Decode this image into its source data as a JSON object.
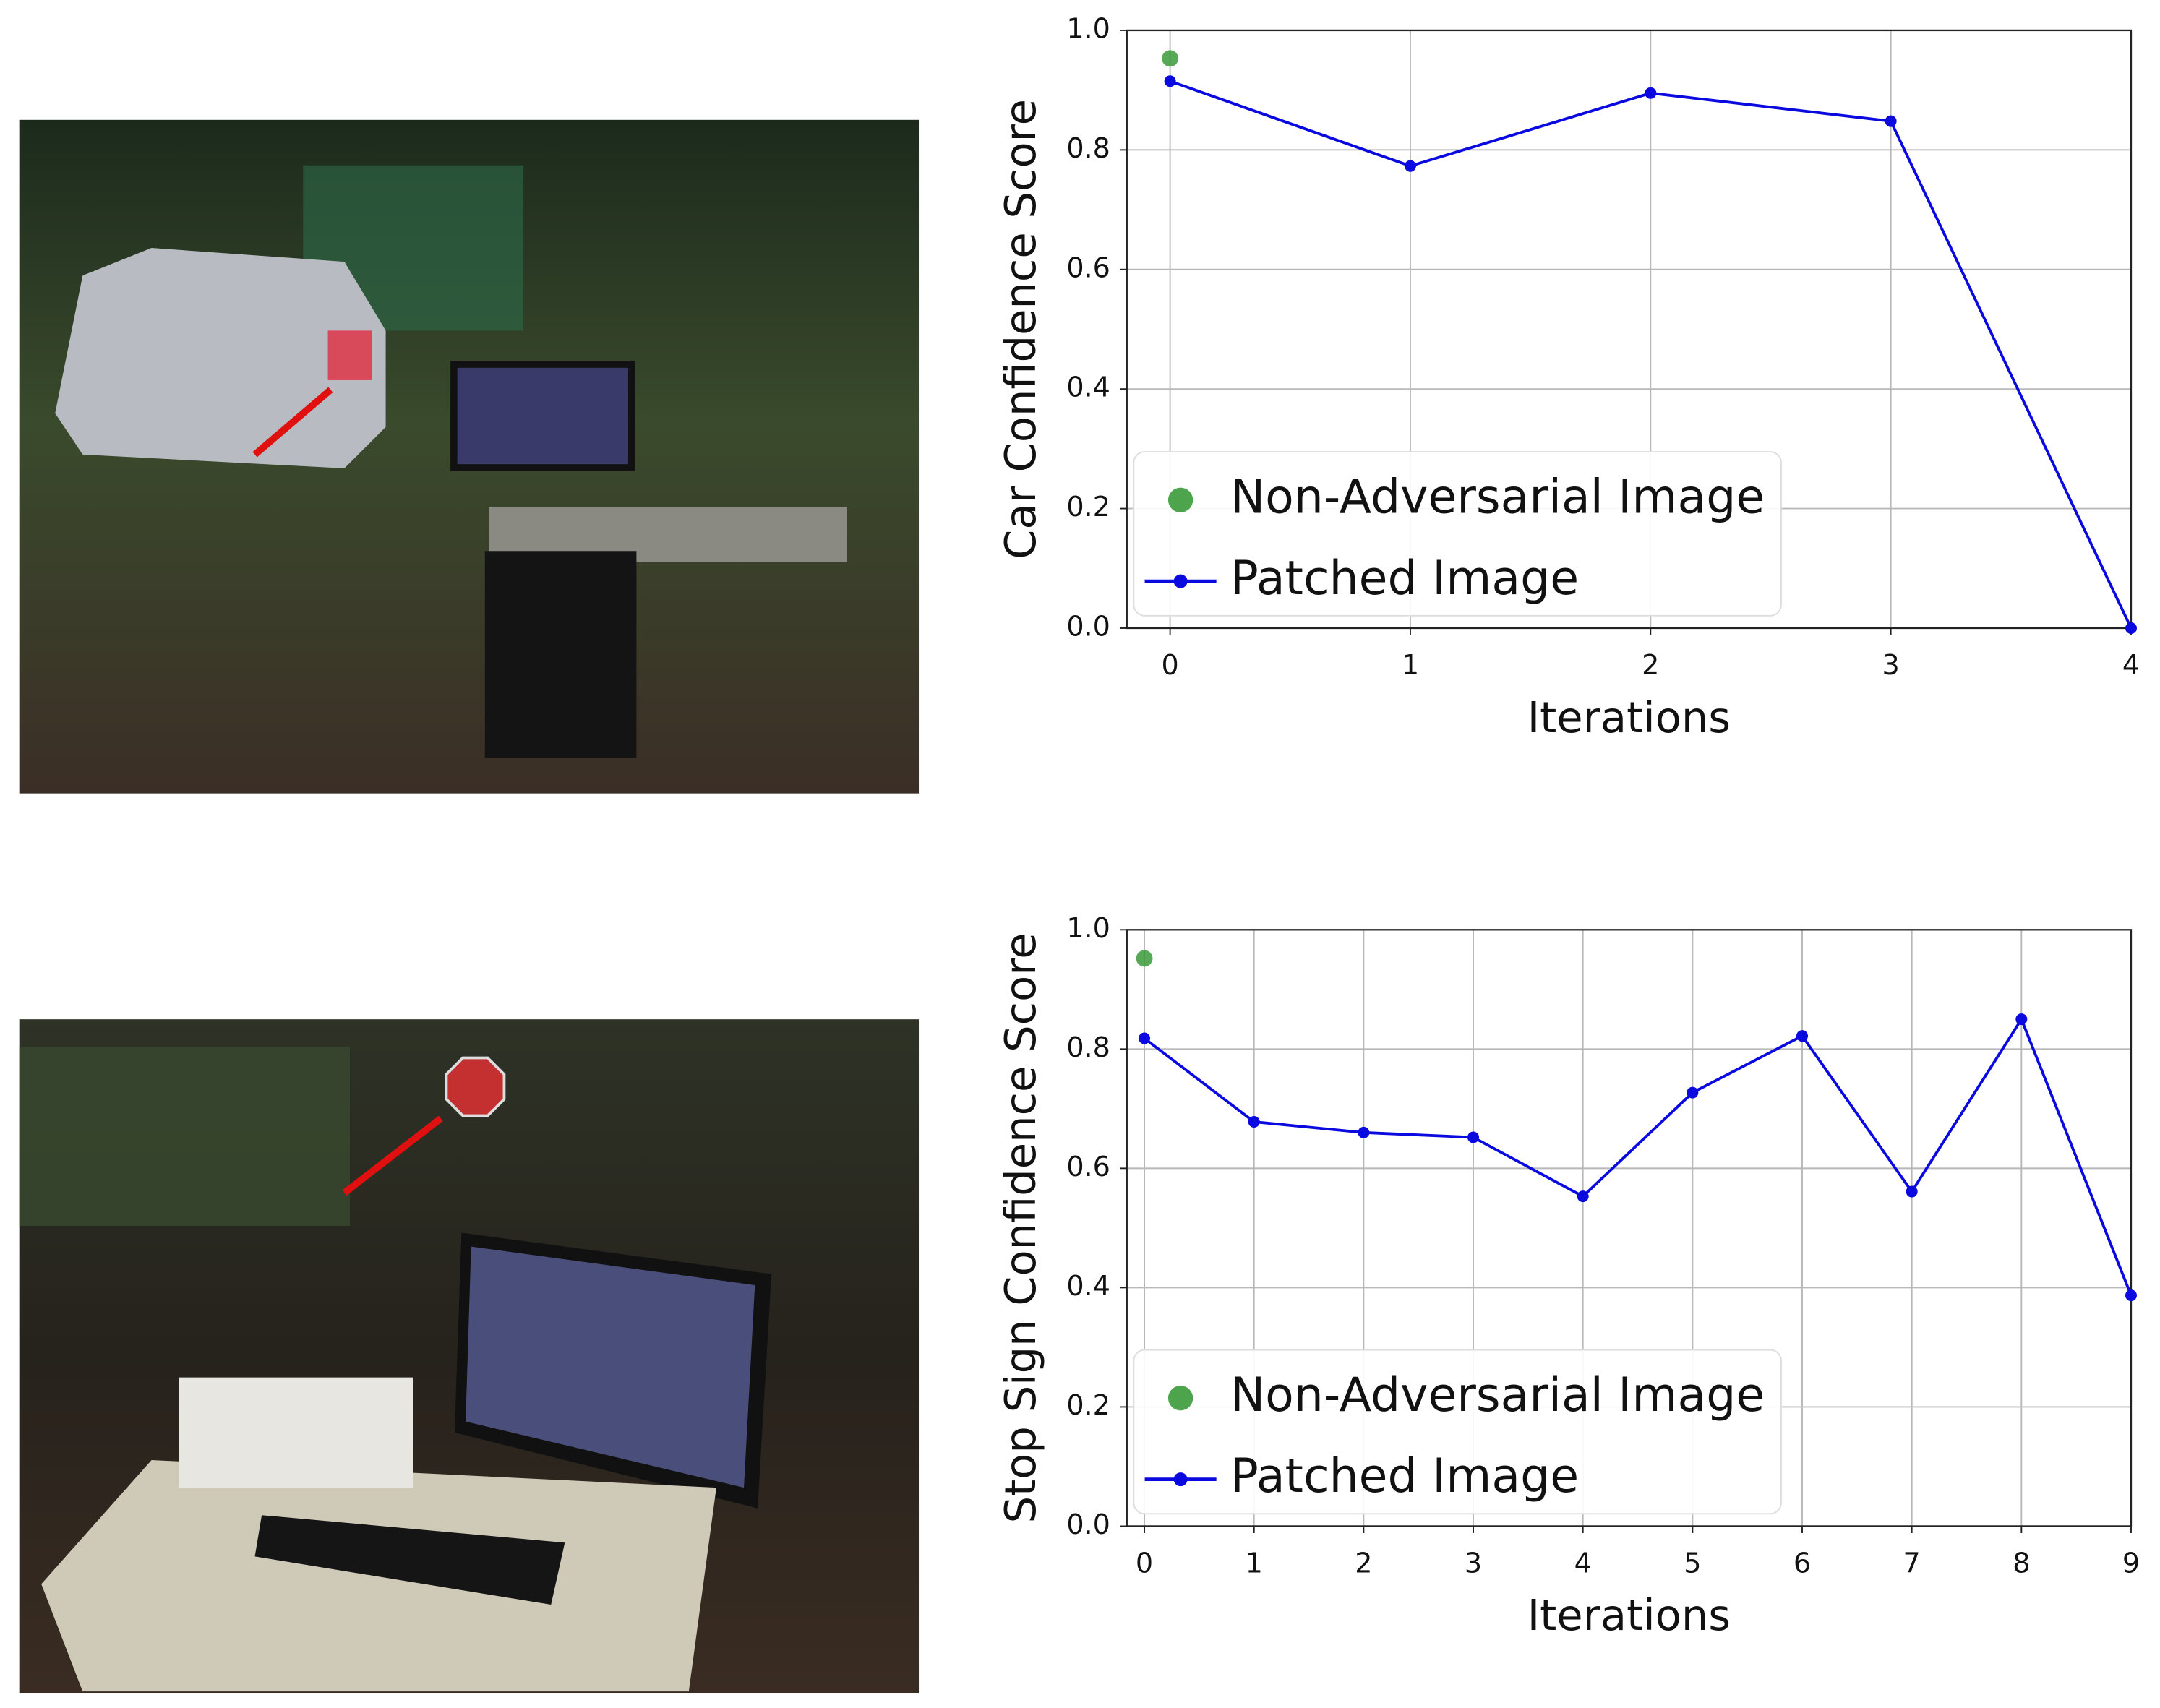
{
  "chart_data": [
    {
      "type": "line",
      "ylabel": "Car Confidence Score",
      "xlabel": "Iterations",
      "xlim": [
        -0.18,
        4
      ],
      "xticks": [
        0,
        1,
        2,
        3,
        4
      ],
      "ylim": [
        0,
        1
      ],
      "yticks": [
        {
          "value": 0,
          "label": "0.0"
        },
        0.2,
        0.4,
        0.6,
        0.8,
        {
          "value": 1,
          "label": "1.0"
        }
      ],
      "grid": true,
      "legend": "lower left",
      "series": [
        {
          "name": "Non-Adversarial Image",
          "color": "#3a9a3a",
          "style": "marker",
          "x": [
            0
          ],
          "values": [
            0.953
          ]
        },
        {
          "name": "Patched Image",
          "color": "#0a0ae0",
          "style": "line",
          "x": [
            0,
            1,
            2,
            3,
            4
          ],
          "values": [
            0.915,
            0.773,
            0.895,
            0.848,
            0.0
          ]
        }
      ]
    },
    {
      "type": "line",
      "ylabel": "Stop Sign Confidence Score",
      "xlabel": "Iterations",
      "xlim": [
        -0.16,
        9
      ],
      "xticks": [
        0,
        1,
        2,
        3,
        4,
        5,
        6,
        7,
        8,
        9
      ],
      "ylim": [
        0,
        1
      ],
      "yticks": [
        {
          "value": 0,
          "label": "0.0"
        },
        0.2,
        0.4,
        0.6,
        0.8,
        {
          "value": 1,
          "label": "1.0"
        }
      ],
      "grid": true,
      "legend": "lower left",
      "series": [
        {
          "name": "Non-Adversarial Image",
          "color": "#3a9a3a",
          "style": "marker",
          "x": [
            0
          ],
          "values": [
            0.952
          ]
        },
        {
          "name": "Patched Image",
          "color": "#0a0ae0",
          "style": "line",
          "x": [
            0,
            1,
            2,
            3,
            4,
            5,
            6,
            7,
            8,
            9
          ],
          "values": [
            0.818,
            0.678,
            0.66,
            0.652,
            0.553,
            0.727,
            0.822,
            0.561,
            0.85,
            0.387
          ]
        }
      ]
    }
  ]
}
